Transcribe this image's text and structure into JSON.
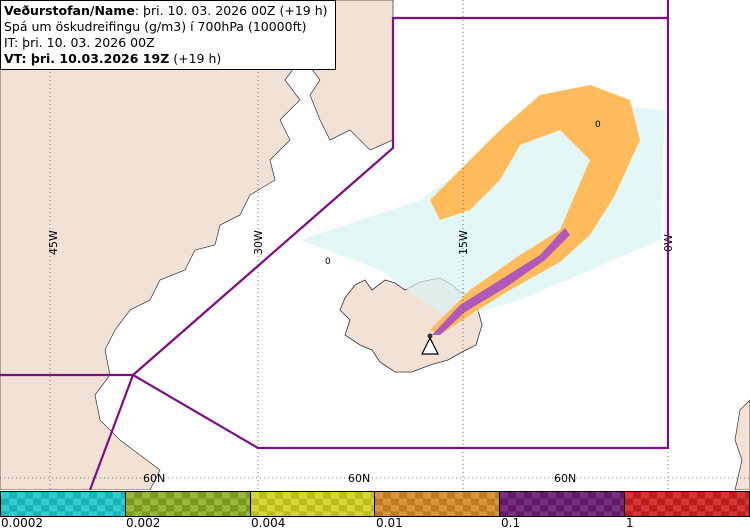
{
  "info": {
    "line1_bold": "Veðurstofan/Name",
    "line1_rest": ": þri. 10. 03. 2026 00Z (+19 h)",
    "line2": "Spá um öskudreifingu (g/m3) í 700hPa (10000ft)",
    "line3": "IT: þri. 10. 03. 2026 00Z",
    "line4_bold": "VT: þri. 10.03.2026 19Z",
    "line4_rest": " (+19 h)"
  },
  "map": {
    "meridian_labels": [
      "45W",
      "30W",
      "15W",
      "0W"
    ],
    "parallel_labels": [
      "60N",
      "60N",
      "60N"
    ],
    "contour_labels": [
      "0",
      "0"
    ],
    "colors": {
      "land": "#f2e2d6",
      "sea": "#ffffff",
      "boundary": "#7b0f7f",
      "grid": "#555555"
    },
    "volcano_icon": "triangle-warning-icon"
  },
  "legend": {
    "bins": [
      {
        "label": "0.0002",
        "color": "#2ecfcf",
        "dark": "#1bb3b3"
      },
      {
        "label": "0.002",
        "color": "#97b835",
        "dark": "#7a9a22"
      },
      {
        "label": "0.004",
        "color": "#d6d634",
        "dark": "#bcbc22"
      },
      {
        "label": "0.01",
        "color": "#d9953a",
        "dark": "#bf7a22"
      },
      {
        "label": "0.1",
        "color": "#7b2f7f",
        "dark": "#621a66"
      },
      {
        "label": "1",
        "color": "#d83535",
        "dark": "#b81f1f"
      }
    ]
  }
}
